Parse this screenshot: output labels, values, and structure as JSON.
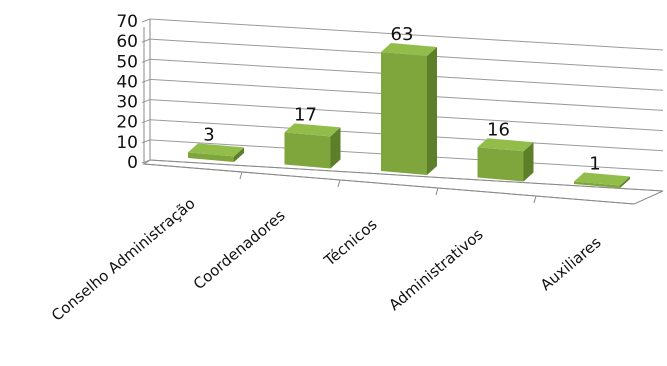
{
  "chart_data": {
    "type": "bar",
    "subtype": "3d-column",
    "categories": [
      "Conselho Administração",
      "Coordenadores",
      "Técnicos",
      "Administrativos",
      "Auxiliares"
    ],
    "values": [
      3,
      17,
      63,
      16,
      1
    ],
    "ylim": [
      0,
      70
    ],
    "yticks": [
      0,
      10,
      20,
      30,
      40,
      50,
      60,
      70
    ],
    "grid": true,
    "legend": "none",
    "data_labels": true,
    "bar_color": "#7fa63c",
    "bar_top_color": "#93bd4b",
    "bar_side_color": "#5e7f2a"
  }
}
